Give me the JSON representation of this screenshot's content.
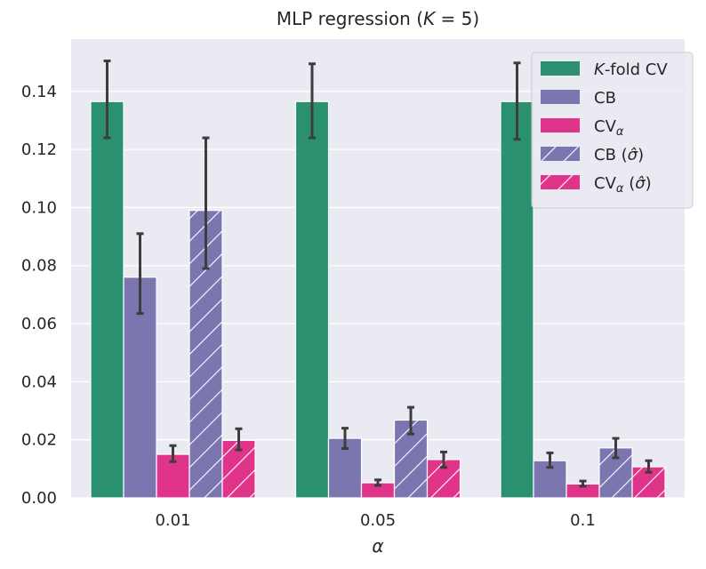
{
  "chart_data": {
    "type": "bar",
    "title": "MLP regression (K = 5)",
    "title_parts": {
      "prefix": "MLP regression (",
      "var": "K",
      "suffix": " = 5)"
    },
    "xlabel": "α",
    "ylabel": "",
    "ylim": [
      0,
      0.158
    ],
    "yticks": [
      "0.00",
      "0.02",
      "0.04",
      "0.06",
      "0.08",
      "0.10",
      "0.12",
      "0.14"
    ],
    "ytick_values": [
      0,
      0.02,
      0.04,
      0.06,
      0.08,
      0.1,
      0.12,
      0.14
    ],
    "categories": [
      "0.01",
      "0.05",
      "0.1"
    ],
    "grid": true,
    "legend_position": "top-right",
    "series": [
      {
        "name": "K-fold CV",
        "legend_var": "K",
        "legend_main": "-fold CV",
        "color": "#2a9070",
        "hatch": false,
        "values": [
          0.1365,
          0.1365,
          0.1365
        ],
        "err_low": [
          0.124,
          0.124,
          0.1235
        ],
        "err_high": [
          0.1505,
          0.1495,
          0.1498
        ]
      },
      {
        "name": "CB",
        "legend_main": "CB",
        "color": "#7b75b0",
        "hatch": false,
        "values": [
          0.076,
          0.0205,
          0.0128
        ],
        "err_low": [
          0.0635,
          0.017,
          0.0105
        ],
        "err_high": [
          0.091,
          0.024,
          0.0155
        ]
      },
      {
        "name": "CVα",
        "legend_main": "CV",
        "legend_sub": "α",
        "color": "#e0338a",
        "hatch": false,
        "values": [
          0.015,
          0.0052,
          0.0048
        ],
        "err_low": [
          0.0125,
          0.0043,
          0.004
        ],
        "err_high": [
          0.018,
          0.0062,
          0.0058
        ]
      },
      {
        "name": "CB (σ̂)",
        "legend_main": "CB (",
        "legend_sigma": "σ̂",
        "legend_end": ")",
        "color": "#7b75b0",
        "hatch": true,
        "values": [
          0.099,
          0.0268,
          0.0172
        ],
        "err_low": [
          0.079,
          0.022,
          0.0138
        ],
        "err_high": [
          0.124,
          0.0312,
          0.0205
        ]
      },
      {
        "name": "CVα (σ̂)",
        "legend_main": "CV",
        "legend_sub": "α",
        "legend_sigma_pre": " (",
        "legend_sigma": "σ̂",
        "legend_end": ")",
        "color": "#e0338a",
        "hatch": true,
        "values": [
          0.0198,
          0.0132,
          0.0107
        ],
        "err_low": [
          0.0165,
          0.0105,
          0.0088
        ],
        "err_high": [
          0.0238,
          0.0158,
          0.0128
        ]
      }
    ]
  }
}
